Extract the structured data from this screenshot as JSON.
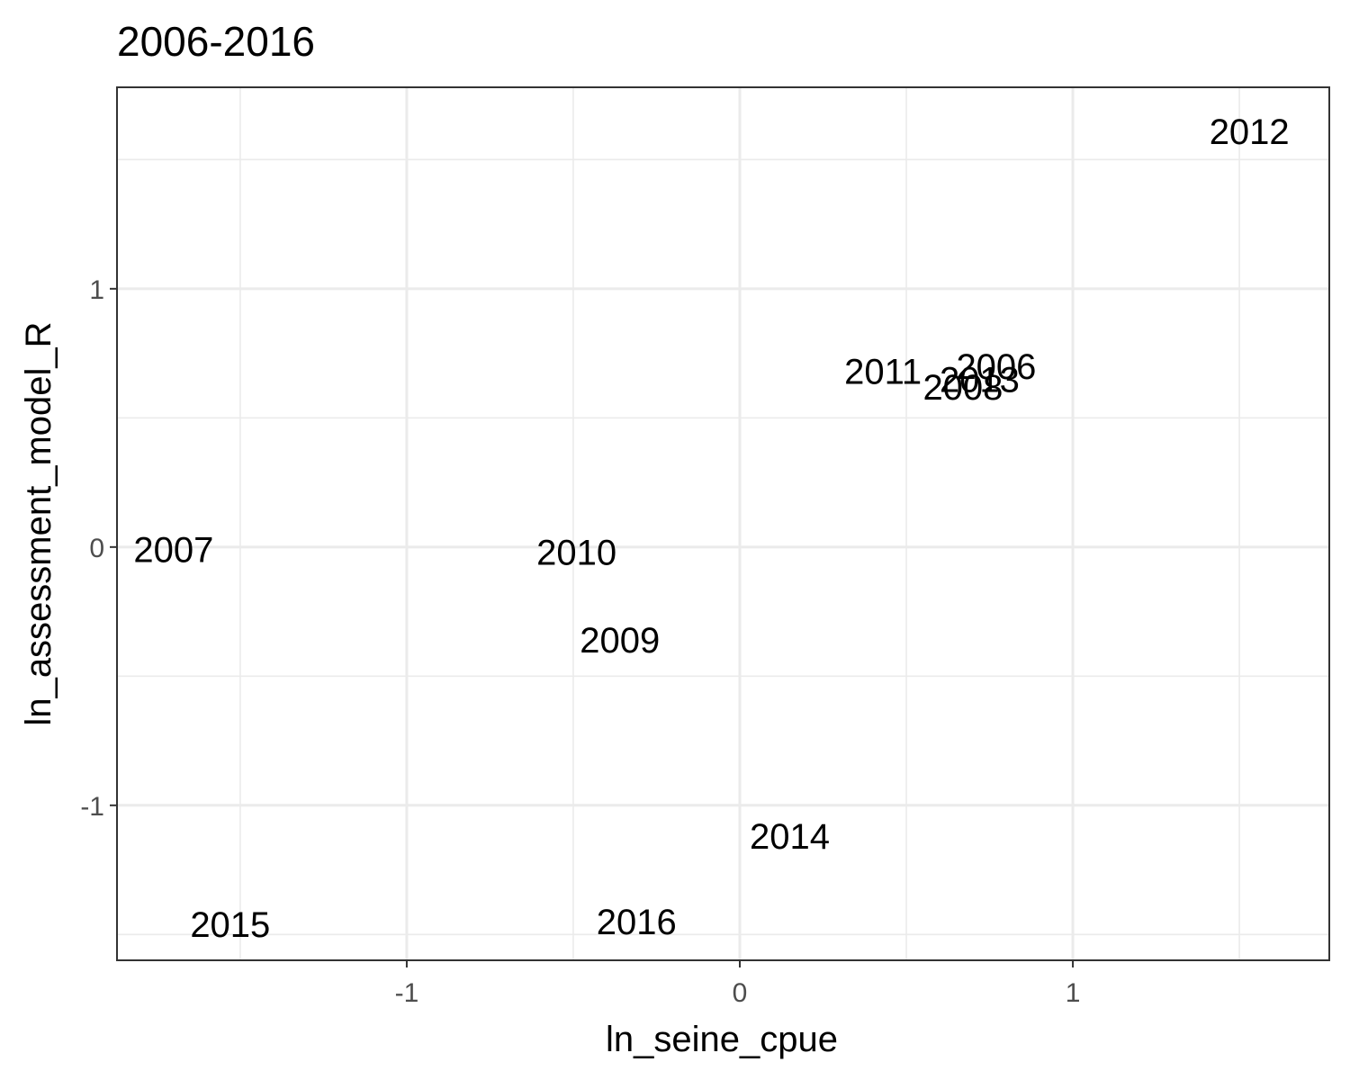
{
  "chart_data": {
    "type": "scatter",
    "title": "2006-2016",
    "xlabel": "ln_seine_cpue",
    "ylabel": "ln_assessment_model_R",
    "xlim": [
      -1.87,
      1.77
    ],
    "ylim": [
      -1.6,
      1.78
    ],
    "x_ticks": [
      -1,
      0,
      1
    ],
    "x_tick_labels": [
      "-1",
      "0",
      "1"
    ],
    "y_ticks": [
      -1,
      0,
      1
    ],
    "y_tick_labels": [
      "-1",
      "0",
      "1"
    ],
    "grid": true,
    "marker": "text labels",
    "points": [
      {
        "label": "2006",
        "x": 0.77,
        "y": 0.7
      },
      {
        "label": "2007",
        "x": -1.7,
        "y": -0.01
      },
      {
        "label": "2008",
        "x": 0.67,
        "y": 0.62
      },
      {
        "label": "2009",
        "x": -0.36,
        "y": -0.36
      },
      {
        "label": "2010",
        "x": -0.49,
        "y": -0.02
      },
      {
        "label": "2011",
        "x": 0.43,
        "y": 0.68
      },
      {
        "label": "2012",
        "x": 1.53,
        "y": 1.61
      },
      {
        "label": "2013",
        "x": 0.72,
        "y": 0.65
      },
      {
        "label": "2014",
        "x": 0.15,
        "y": -1.12
      },
      {
        "label": "2015",
        "x": -1.53,
        "y": -1.46
      },
      {
        "label": "2016",
        "x": -0.31,
        "y": -1.45
      }
    ]
  }
}
